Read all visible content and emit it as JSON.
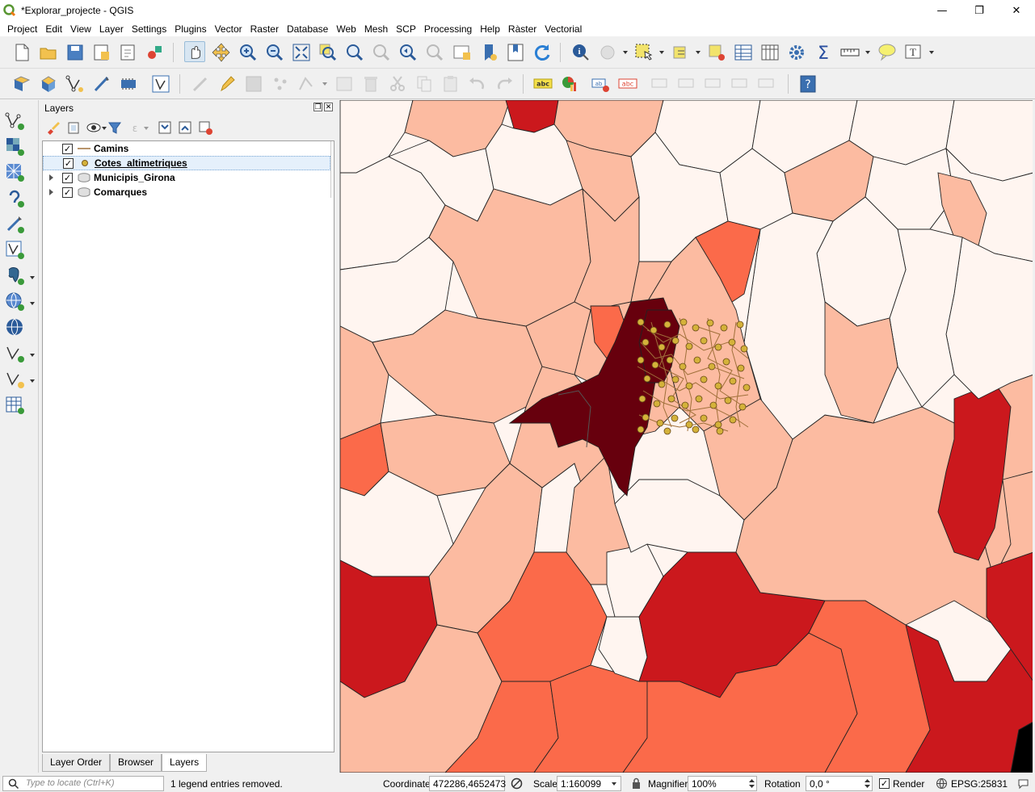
{
  "window": {
    "title": "*Explorar_projecte - QGIS",
    "minimize": "—",
    "restore": "❐",
    "close": "✕"
  },
  "menu": [
    "Project",
    "Edit",
    "View",
    "Layer",
    "Settings",
    "Plugins",
    "Vector",
    "Raster",
    "Database",
    "Web",
    "Mesh",
    "SCP",
    "Processing",
    "Help",
    "Ràster",
    "Vectorial"
  ],
  "layers_panel": {
    "title": "Layers",
    "layers": [
      {
        "name": "Camins",
        "checked": "✓",
        "symbol": "line"
      },
      {
        "name": "Cotes_altimetriques",
        "checked": "✓",
        "symbol": "point"
      },
      {
        "name": "Municipis_Girona",
        "checked": "✓",
        "symbol": "polygon"
      },
      {
        "name": "Comarques",
        "checked": "✓",
        "symbol": "polygon"
      }
    ],
    "tabs": [
      "Layer Order",
      "Browser",
      "Layers"
    ],
    "active_tab": "Layers"
  },
  "statusbar": {
    "locate_placeholder": "Type to locate (Ctrl+K)",
    "message": "1 legend entries removed.",
    "coordinate_label": "Coordinate",
    "coordinate_value": "472286,4652473",
    "scale_label": "Scale",
    "scale_value": "1:160099",
    "magnifier_label": "Magnifier",
    "magnifier_value": "100%",
    "rotation_label": "Rotation",
    "rotation_value": "0,0 °",
    "render_label": "Render",
    "render_checked": "✓",
    "crs": "EPSG:25831"
  },
  "colors": {
    "class_1": "#fff5f0",
    "class_2": "#fcbba1",
    "class_3": "#fb6a4a",
    "class_4": "#cb181d",
    "class_5": "#67000d",
    "points": "#d4b23a",
    "paths": "#a0703a"
  }
}
